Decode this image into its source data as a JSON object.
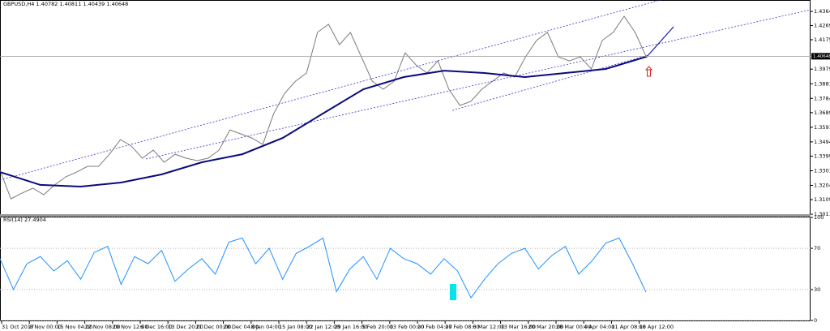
{
  "chart_data": [
    {
      "type": "line",
      "symbol": "GBPUSD,H4",
      "ohlc": [
        1.40782,
        1.40811,
        1.40439,
        1.40648
      ],
      "current_price": 1.40648,
      "ylim": [
        1.3012,
        1.444
      ],
      "yticks": [
        {
          "value": 1.4364,
          "label": "1.43640"
        },
        {
          "value": 1.42695,
          "label": "1.42695"
        },
        {
          "value": 1.4175,
          "label": "1.41750"
        },
        {
          "value": 1.3979,
          "label": "1.39790"
        },
        {
          "value": 1.38815,
          "label": "1.38815"
        },
        {
          "value": 1.3784,
          "label": "1.37840"
        },
        {
          "value": 1.3689,
          "label": "1.36890"
        },
        {
          "value": 1.35915,
          "label": "1.35915"
        },
        {
          "value": 1.3494,
          "label": "1.34940"
        },
        {
          "value": 1.3399,
          "label": "1.33990"
        },
        {
          "value": 1.33015,
          "label": "1.33015"
        },
        {
          "value": 1.3204,
          "label": "1.32040"
        },
        {
          "value": 1.3109,
          "label": "1.31090"
        },
        {
          "value": 1.30115,
          "label": "1.30115"
        }
      ],
      "time_labels": [
        "31 Oct 2017",
        "8 Nov 00:00",
        "15 Nov 04:00",
        "22 Nov 08:00",
        "29 Nov 12:00",
        "6 Dec 16:00",
        "13 Dec 20:00",
        "21 Dec 00:00",
        "28 Dec 04:00",
        "8 Jan 04:00",
        "15 Jan 08:00",
        "22 Jan 12:00",
        "29 Jan 16:00",
        "5 Feb 20:00",
        "13 Feb 00:00",
        "20 Feb 04:00",
        "27 Feb 08:00",
        "6 Mar 12:00",
        "13 Mar 16:00",
        "20 Mar 20:00",
        "28 Mar 00:00",
        "4 Apr 04:00",
        "11 Apr 08:00",
        "18 Apr 12:00"
      ],
      "series": [
        {
          "color": "#7a7a7a",
          "values": [
            1.3304,
            1.3115,
            1.3152,
            1.3185,
            1.3142,
            1.3207,
            1.3261,
            1.3293,
            1.3331,
            1.3331,
            1.3412,
            1.3509,
            1.3466,
            1.3385,
            1.3439,
            1.3358,
            1.3412,
            1.3385,
            1.3369,
            1.3385,
            1.3439,
            1.3574,
            1.3547,
            1.352,
            1.3477,
            1.3683,
            1.3818,
            1.3899,
            1.3953,
            1.4224,
            1.4278,
            1.4142,
            1.4224,
            1.4061,
            1.3899,
            1.3845,
            1.3899,
            1.4088,
            1.4007,
            1.3953,
            1.4034,
            1.3845,
            1.3737,
            1.3764,
            1.3845,
            1.3899,
            1.3953,
            1.3926,
            1.4061,
            1.417,
            1.4224,
            1.4061,
            1.4034,
            1.4061,
            1.398,
            1.417,
            1.4224,
            1.4332,
            1.4224,
            1.40648
          ]
        },
        {
          "color": "#0a0a80",
          "values": [
            1.3293,
            1.3207,
            1.3196,
            1.3223,
            1.3277,
            1.3358,
            1.3412,
            1.352,
            1.3683,
            1.3845,
            1.3926,
            1.3969,
            1.3953,
            1.3926,
            1.3953,
            1.398,
            1.4061
          ]
        }
      ]
    },
    {
      "type": "line",
      "label": "RSI(14)",
      "last_value": 27.4904,
      "ylim": [
        0,
        100
      ],
      "yticks": [
        0,
        30,
        70,
        100
      ],
      "series": [
        {
          "color": "#1e90ff",
          "values": [
            60,
            30,
            55,
            62,
            48,
            58,
            40,
            66,
            72,
            35,
            62,
            55,
            68,
            38,
            50,
            60,
            45,
            76,
            80,
            55,
            70,
            40,
            65,
            72,
            80,
            28,
            50,
            62,
            40,
            70,
            60,
            55,
            45,
            60,
            48,
            22,
            40,
            55,
            65,
            70,
            50,
            63,
            72,
            45,
            58,
            75,
            80,
            55,
            27.4904
          ]
        }
      ]
    }
  ]
}
